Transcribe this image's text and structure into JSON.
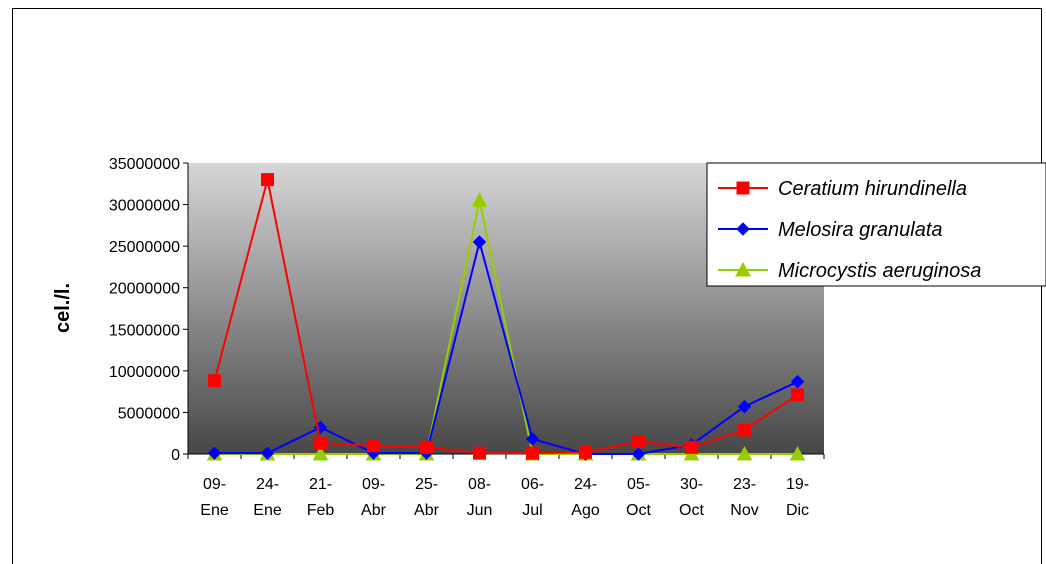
{
  "chart_data": {
    "type": "line",
    "title": "",
    "xlabel": "",
    "ylabel": "cel./l.",
    "ylim": [
      0,
      35000000
    ],
    "yticks": [
      0,
      5000000,
      10000000,
      15000000,
      20000000,
      25000000,
      30000000,
      35000000
    ],
    "ytick_labels": [
      "0",
      "5000000",
      "10000000",
      "15000000",
      "20000000",
      "25000000",
      "30000000",
      "35000000"
    ],
    "categories": [
      [
        "09-",
        "Ene"
      ],
      [
        "24-",
        "Ene"
      ],
      [
        "21-",
        "Feb"
      ],
      [
        "09-",
        "Abr"
      ],
      [
        "25-",
        "Abr"
      ],
      [
        "08-",
        "Jun"
      ],
      [
        "06-",
        "Jul"
      ],
      [
        "24-",
        "Ago"
      ],
      [
        "05-",
        "Oct"
      ],
      [
        "30-",
        "Oct"
      ],
      [
        "23-",
        "Nov"
      ],
      [
        "19-",
        "Dic"
      ]
    ],
    "grid": false,
    "legend_position": "top-right",
    "plot_background": "vertical gradient #d4d4d4 to #4a4a4a",
    "series": [
      {
        "name": "Ceratium hirundinella",
        "color": "#ff0000",
        "marker": "square",
        "values": [
          8800000,
          33000000,
          1300000,
          1000000,
          800000,
          100000,
          100000,
          200000,
          1500000,
          800000,
          2900000,
          7100000
        ]
      },
      {
        "name": "Melosira granulata",
        "color": "#0000ff",
        "marker": "diamond",
        "values": [
          100000,
          100000,
          3200000,
          100000,
          100000,
          25500000,
          1800000,
          0,
          0,
          1100000,
          5700000,
          8700000
        ]
      },
      {
        "name": "Microcystis aeruginosa",
        "color": "#99cc00",
        "marker": "triangle",
        "values": [
          0,
          0,
          0,
          0,
          0,
          30500000,
          0,
          0,
          0,
          0,
          0,
          0
        ]
      }
    ]
  }
}
